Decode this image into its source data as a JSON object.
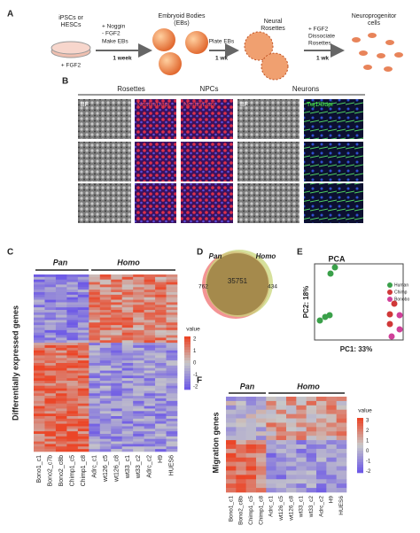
{
  "panel_labels": [
    "A",
    "B",
    "C",
    "D",
    "E",
    "F"
  ],
  "panel_a": {
    "start_label": [
      "iPSCs or",
      "HESCs"
    ],
    "start_condition": "+ FGF2",
    "step1": {
      "conditions": [
        "+ Noggin",
        "- FGF2",
        "Make EBs"
      ],
      "duration": "1 week"
    },
    "eb_label": [
      "Embryoid Bodies",
      "(EBs)"
    ],
    "step2": {
      "conditions": [
        "Plate EBs"
      ],
      "duration": "1 wk"
    },
    "rosette_label": [
      "Neural",
      "Rosettes"
    ],
    "step3": {
      "conditions": [
        "+ FGF2",
        "Dissociate",
        "Rosettes"
      ],
      "duration": "1 wk"
    },
    "npc_label": [
      "Neuroprogenitor",
      "cells"
    ]
  },
  "panel_b": {
    "groups": [
      "Rosettes",
      "NPCs",
      "Neurons"
    ],
    "stains": [
      "BF",
      "Nestin/Dapi",
      "Nestin/Dapi",
      "BF",
      "Tuj1/Dapi"
    ]
  },
  "panel_c": {
    "groups": [
      "Pan",
      "Homo"
    ],
    "y_label": "Differentially expressed genes",
    "legend_title": "value",
    "legend_ticks": [
      2,
      1,
      0,
      -1,
      -2
    ],
    "columns": [
      "Bono1_c1",
      "Bono2_c7b",
      "Bono2_c8b",
      "Chimp1_c5",
      "Chimp1_c8",
      "Adrc_c1",
      "wt126_c5",
      "wt126_c8",
      "wt33_c1",
      "wt33_c2",
      "Adrc_c2",
      "H9",
      "HUES6"
    ]
  },
  "panel_d": {
    "groups": [
      "Pan",
      "Homo"
    ],
    "pan_only": "762",
    "shared": "35751",
    "homo_only": "434"
  },
  "panel_e": {
    "title": "PCA",
    "y_label": "PC2: 18%",
    "x_label": "PC1: 33%",
    "legend": [
      "Human",
      "Chimp",
      "Bonobo"
    ]
  },
  "panel_f": {
    "groups": [
      "Pan",
      "Homo"
    ],
    "y_label": "Migration genes",
    "legend_title": "value",
    "legend_ticks": [
      3,
      2,
      1,
      0,
      -1,
      -2
    ],
    "columns": [
      "Bono1_c1",
      "Bono2_c8b",
      "Chimp1_c5",
      "Chimp1_c8",
      "Adrc_c1",
      "wt126_c5",
      "wt126_c8",
      "wt33_c1",
      "wt33_c2",
      "Adrc_c2",
      "H9",
      "HUES6"
    ]
  }
}
